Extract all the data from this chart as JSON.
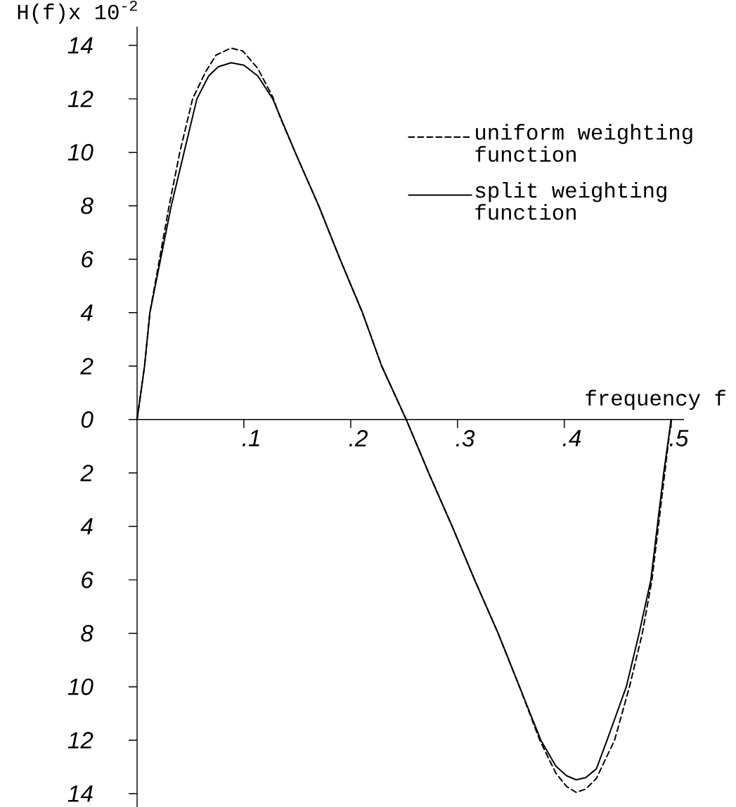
{
  "chart_data": {
    "type": "line",
    "xlabel": "frequency f",
    "ylabel": "H(f)x 10$^{-2}$",
    "xlim": [
      0,
      0.512
    ],
    "ylim": [
      -14.5,
      14.7
    ],
    "xticks": [
      {
        "value": 0.1,
        "label": ".1"
      },
      {
        "value": 0.2,
        "label": ".2"
      },
      {
        "value": 0.3,
        "label": ".3"
      },
      {
        "value": 0.4,
        "label": ".4"
      },
      {
        "value": 0.5,
        "label": ".5"
      }
    ],
    "yticks": [
      {
        "value": -14,
        "label": "14"
      },
      {
        "value": -12,
        "label": "12"
      },
      {
        "value": -10,
        "label": "10"
      },
      {
        "value": -8,
        "label": "8"
      },
      {
        "value": -6,
        "label": "6"
      },
      {
        "value": -4,
        "label": "4"
      },
      {
        "value": -2,
        "label": "2"
      },
      0,
      2,
      4,
      6,
      8,
      10,
      12,
      14
    ],
    "legend": "top right",
    "series": [
      {
        "name": "uniform weighting function",
        "color": "#000000",
        "line_style": "dashed",
        "x": [
          0,
          0.007,
          0.012,
          0.021,
          0.03,
          0.04,
          0.052,
          0.064,
          0.074,
          0.088,
          0.099,
          0.113,
          0.127,
          0.134,
          0.148,
          0.17,
          0.19,
          0.211,
          0.229,
          0.252,
          0.273,
          0.295,
          0.316,
          0.338,
          0.358,
          0.377,
          0.392,
          0.402,
          0.411,
          0.42,
          0.43,
          0.447,
          0.461,
          0.473,
          0.482,
          0.488,
          0.494,
          0.5
        ],
        "values": [
          0,
          2,
          4,
          6,
          8,
          10,
          12,
          13.0,
          13.64,
          13.9,
          13.79,
          13.14,
          12.07,
          11.3,
          10,
          8,
          6,
          4,
          2,
          0,
          -2,
          -4,
          -6,
          -8,
          -10,
          -12,
          -13.23,
          -13.73,
          -13.95,
          -13.83,
          -13.43,
          -12,
          -10,
          -8,
          -6,
          -4,
          -2,
          0
        ]
      },
      {
        "name": "split weighting function",
        "color": "#000000",
        "line_style": "solid",
        "x": [
          0,
          0.007,
          0.012,
          0.022,
          0.032,
          0.044,
          0.056,
          0.067,
          0.076,
          0.088,
          0.1,
          0.113,
          0.127,
          0.148,
          0.17,
          0.19,
          0.211,
          0.229,
          0.252,
          0.273,
          0.295,
          0.316,
          0.338,
          0.358,
          0.378,
          0.392,
          0.402,
          0.411,
          0.42,
          0.43,
          0.44,
          0.458,
          0.47,
          0.481,
          0.487,
          0.493,
          0.5
        ],
        "values": [
          0,
          2,
          4,
          6,
          8,
          10,
          12,
          12.86,
          13.2,
          13.35,
          13.26,
          12.86,
          12,
          10,
          8,
          6,
          4,
          2,
          0,
          -2,
          -4,
          -6,
          -8,
          -10,
          -12,
          -12.97,
          -13.33,
          -13.48,
          -13.4,
          -13.07,
          -12,
          -10,
          -8,
          -6,
          -4,
          -2,
          0
        ]
      }
    ]
  }
}
